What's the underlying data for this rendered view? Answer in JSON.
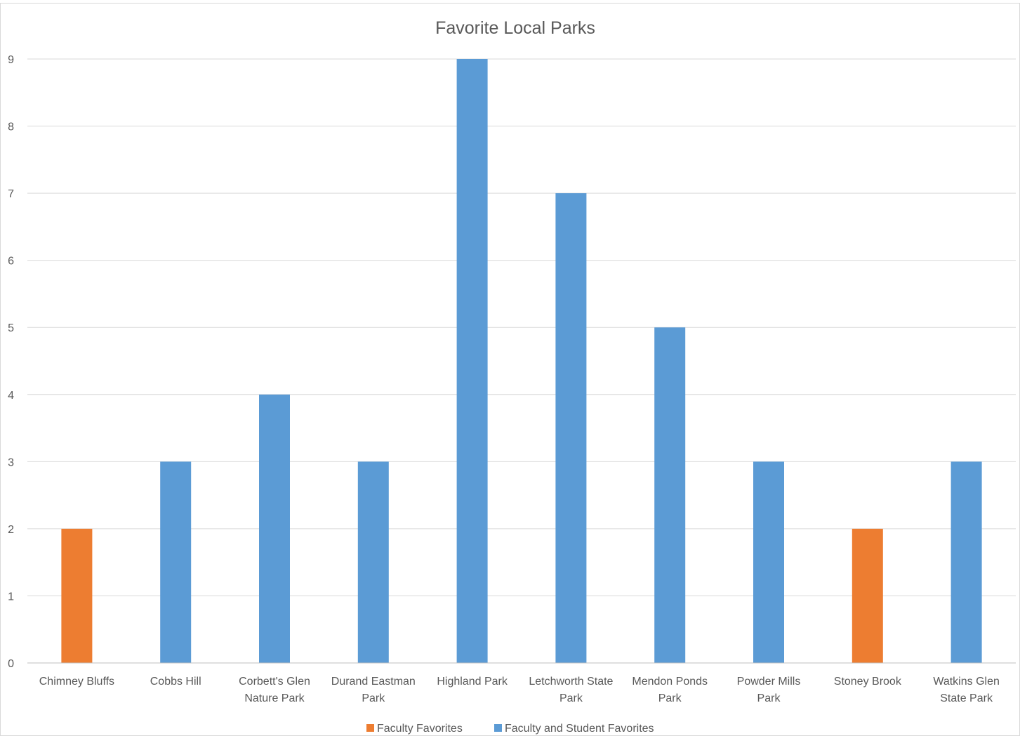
{
  "chart_data": {
    "type": "bar",
    "title": "Favorite Local Parks",
    "categories": [
      [
        "Chimney Bluffs"
      ],
      [
        "Cobbs Hill"
      ],
      [
        "Corbett's Glen",
        "Nature Park"
      ],
      [
        "Durand Eastman",
        "Park"
      ],
      [
        "Highland Park"
      ],
      [
        "Letchworth State",
        "Park"
      ],
      [
        "Mendon Ponds",
        "Park"
      ],
      [
        "Powder Mills",
        "Park"
      ],
      [
        "Stoney Brook"
      ],
      [
        "Watkins Glen",
        "State Park"
      ]
    ],
    "values": [
      2,
      3,
      4,
      3,
      9,
      7,
      5,
      3,
      2,
      3
    ],
    "bar_series": [
      0,
      1,
      1,
      1,
      1,
      1,
      1,
      1,
      0,
      1
    ],
    "series": [
      {
        "name": "Faculty Favorites",
        "color": "#ed7d31"
      },
      {
        "name": "Faculty and Student Favorites",
        "color": "#5b9bd5"
      }
    ],
    "ylim": [
      0,
      9
    ],
    "yticks": [
      0,
      1,
      2,
      3,
      4,
      5,
      6,
      7,
      8,
      9
    ],
    "xlabel": "",
    "ylabel": "",
    "grid": true,
    "legend": "bottom"
  }
}
